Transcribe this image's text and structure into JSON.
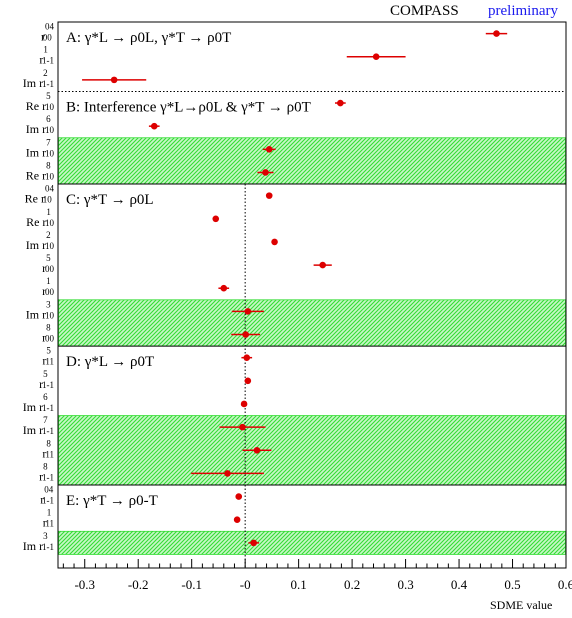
{
  "header": {
    "experiment": "COMPASS",
    "status": "preliminary"
  },
  "colors": {
    "marker": "#dd0000",
    "band_fill": "#33dd33",
    "band_bg": "#c8f7c8",
    "status_text": "#1a1aee"
  },
  "chart_data": {
    "type": "scatter",
    "title": "",
    "xlabel": "SDME value",
    "ylabel": "",
    "xlim": [
      -0.35,
      0.6
    ],
    "xticks": [
      "-0.3",
      "-0.2",
      "-0.1",
      "-0",
      "0.1",
      "0.2",
      "0.3",
      "0.4",
      "0.5",
      "0.6"
    ],
    "grid": false,
    "zero_line": "dotted",
    "groups": [
      {
        "id": "A",
        "label": "A: γ*L → ρ0L, γ*T → ρ0T",
        "rows": [
          {
            "prefix": "",
            "sym": "r",
            "sup": "04",
            "sub": "00",
            "value": 0.47,
            "err": 0.02,
            "shaded": false
          },
          {
            "prefix": "",
            "sym": "r",
            "sup": "1",
            "sub": "1-1",
            "value": 0.245,
            "err": 0.055,
            "shaded": false
          },
          {
            "prefix": "Im",
            "sym": "r",
            "sup": "2",
            "sub": "1-1",
            "value": -0.245,
            "err": 0.06,
            "shaded": false
          }
        ]
      },
      {
        "id": "B",
        "label": "B: Interference γ*L→ρ0L & γ*T → ρ0T",
        "rows": [
          {
            "prefix": "Re",
            "sym": "r",
            "sup": "5",
            "sub": "10",
            "value": 0.178,
            "err": 0.01,
            "shaded": false
          },
          {
            "prefix": "Im",
            "sym": "r",
            "sup": "6",
            "sub": "10",
            "value": -0.17,
            "err": 0.01,
            "shaded": false
          },
          {
            "prefix": "Im",
            "sym": "r",
            "sup": "7",
            "sub": "10",
            "value": 0.045,
            "err": 0.012,
            "shaded": true
          },
          {
            "prefix": "Re",
            "sym": "r",
            "sup": "8",
            "sub": "10",
            "value": 0.038,
            "err": 0.015,
            "shaded": true
          }
        ]
      },
      {
        "id": "C",
        "label": "C: γ*T → ρ0L",
        "rows": [
          {
            "prefix": "Re",
            "sym": "r",
            "sup": "04",
            "sub": "10",
            "value": 0.045,
            "err": 0.005,
            "shaded": false
          },
          {
            "prefix": "Re",
            "sym": "r",
            "sup": "1",
            "sub": "10",
            "value": -0.055,
            "err": 0.005,
            "shaded": false
          },
          {
            "prefix": "Im",
            "sym": "r",
            "sup": "2",
            "sub": "10",
            "value": 0.055,
            "err": 0.005,
            "shaded": false
          },
          {
            "prefix": "",
            "sym": "r",
            "sup": "5",
            "sub": "00",
            "value": 0.145,
            "err": 0.017,
            "shaded": false
          },
          {
            "prefix": "",
            "sym": "r",
            "sup": "1",
            "sub": "00",
            "value": -0.04,
            "err": 0.01,
            "shaded": false
          },
          {
            "prefix": "Im",
            "sym": "r",
            "sup": "3",
            "sub": "10",
            "value": 0.005,
            "err": 0.03,
            "shaded": true
          },
          {
            "prefix": "",
            "sym": "r",
            "sup": "8",
            "sub": "00",
            "value": 0.001,
            "err": 0.027,
            "shaded": true
          }
        ]
      },
      {
        "id": "D",
        "label": "D: γ*L → ρ0T",
        "rows": [
          {
            "prefix": "",
            "sym": "r",
            "sup": "5",
            "sub": "11",
            "value": 0.003,
            "err": 0.01,
            "shaded": false
          },
          {
            "prefix": "",
            "sym": "r",
            "sup": "5",
            "sub": "1-1",
            "value": 0.005,
            "err": 0.004,
            "shaded": false
          },
          {
            "prefix": "Im",
            "sym": "r",
            "sup": "6",
            "sub": "1-1",
            "value": -0.002,
            "err": 0.004,
            "shaded": false
          },
          {
            "prefix": "Im",
            "sym": "r",
            "sup": "7",
            "sub": "1-1",
            "value": -0.005,
            "err": 0.043,
            "shaded": true
          },
          {
            "prefix": "",
            "sym": "r",
            "sup": "8",
            "sub": "11",
            "value": 0.022,
            "err": 0.027,
            "shaded": true
          },
          {
            "prefix": "",
            "sym": "r",
            "sup": "8",
            "sub": "1-1",
            "value": -0.033,
            "err": 0.068,
            "shaded": true
          }
        ]
      },
      {
        "id": "E",
        "label": "E: γ*T → ρ0-T",
        "rows": [
          {
            "prefix": "",
            "sym": "r",
            "sup": "04",
            "sub": "1-1",
            "value": -0.012,
            "err": 0.004,
            "shaded": false
          },
          {
            "prefix": "",
            "sym": "r",
            "sup": "1",
            "sub": "11",
            "value": -0.015,
            "err": 0.004,
            "shaded": false
          },
          {
            "prefix": "Im",
            "sym": "r",
            "sup": "3",
            "sub": "1-1",
            "value": 0.016,
            "err": 0.01,
            "shaded": true
          }
        ]
      }
    ]
  }
}
